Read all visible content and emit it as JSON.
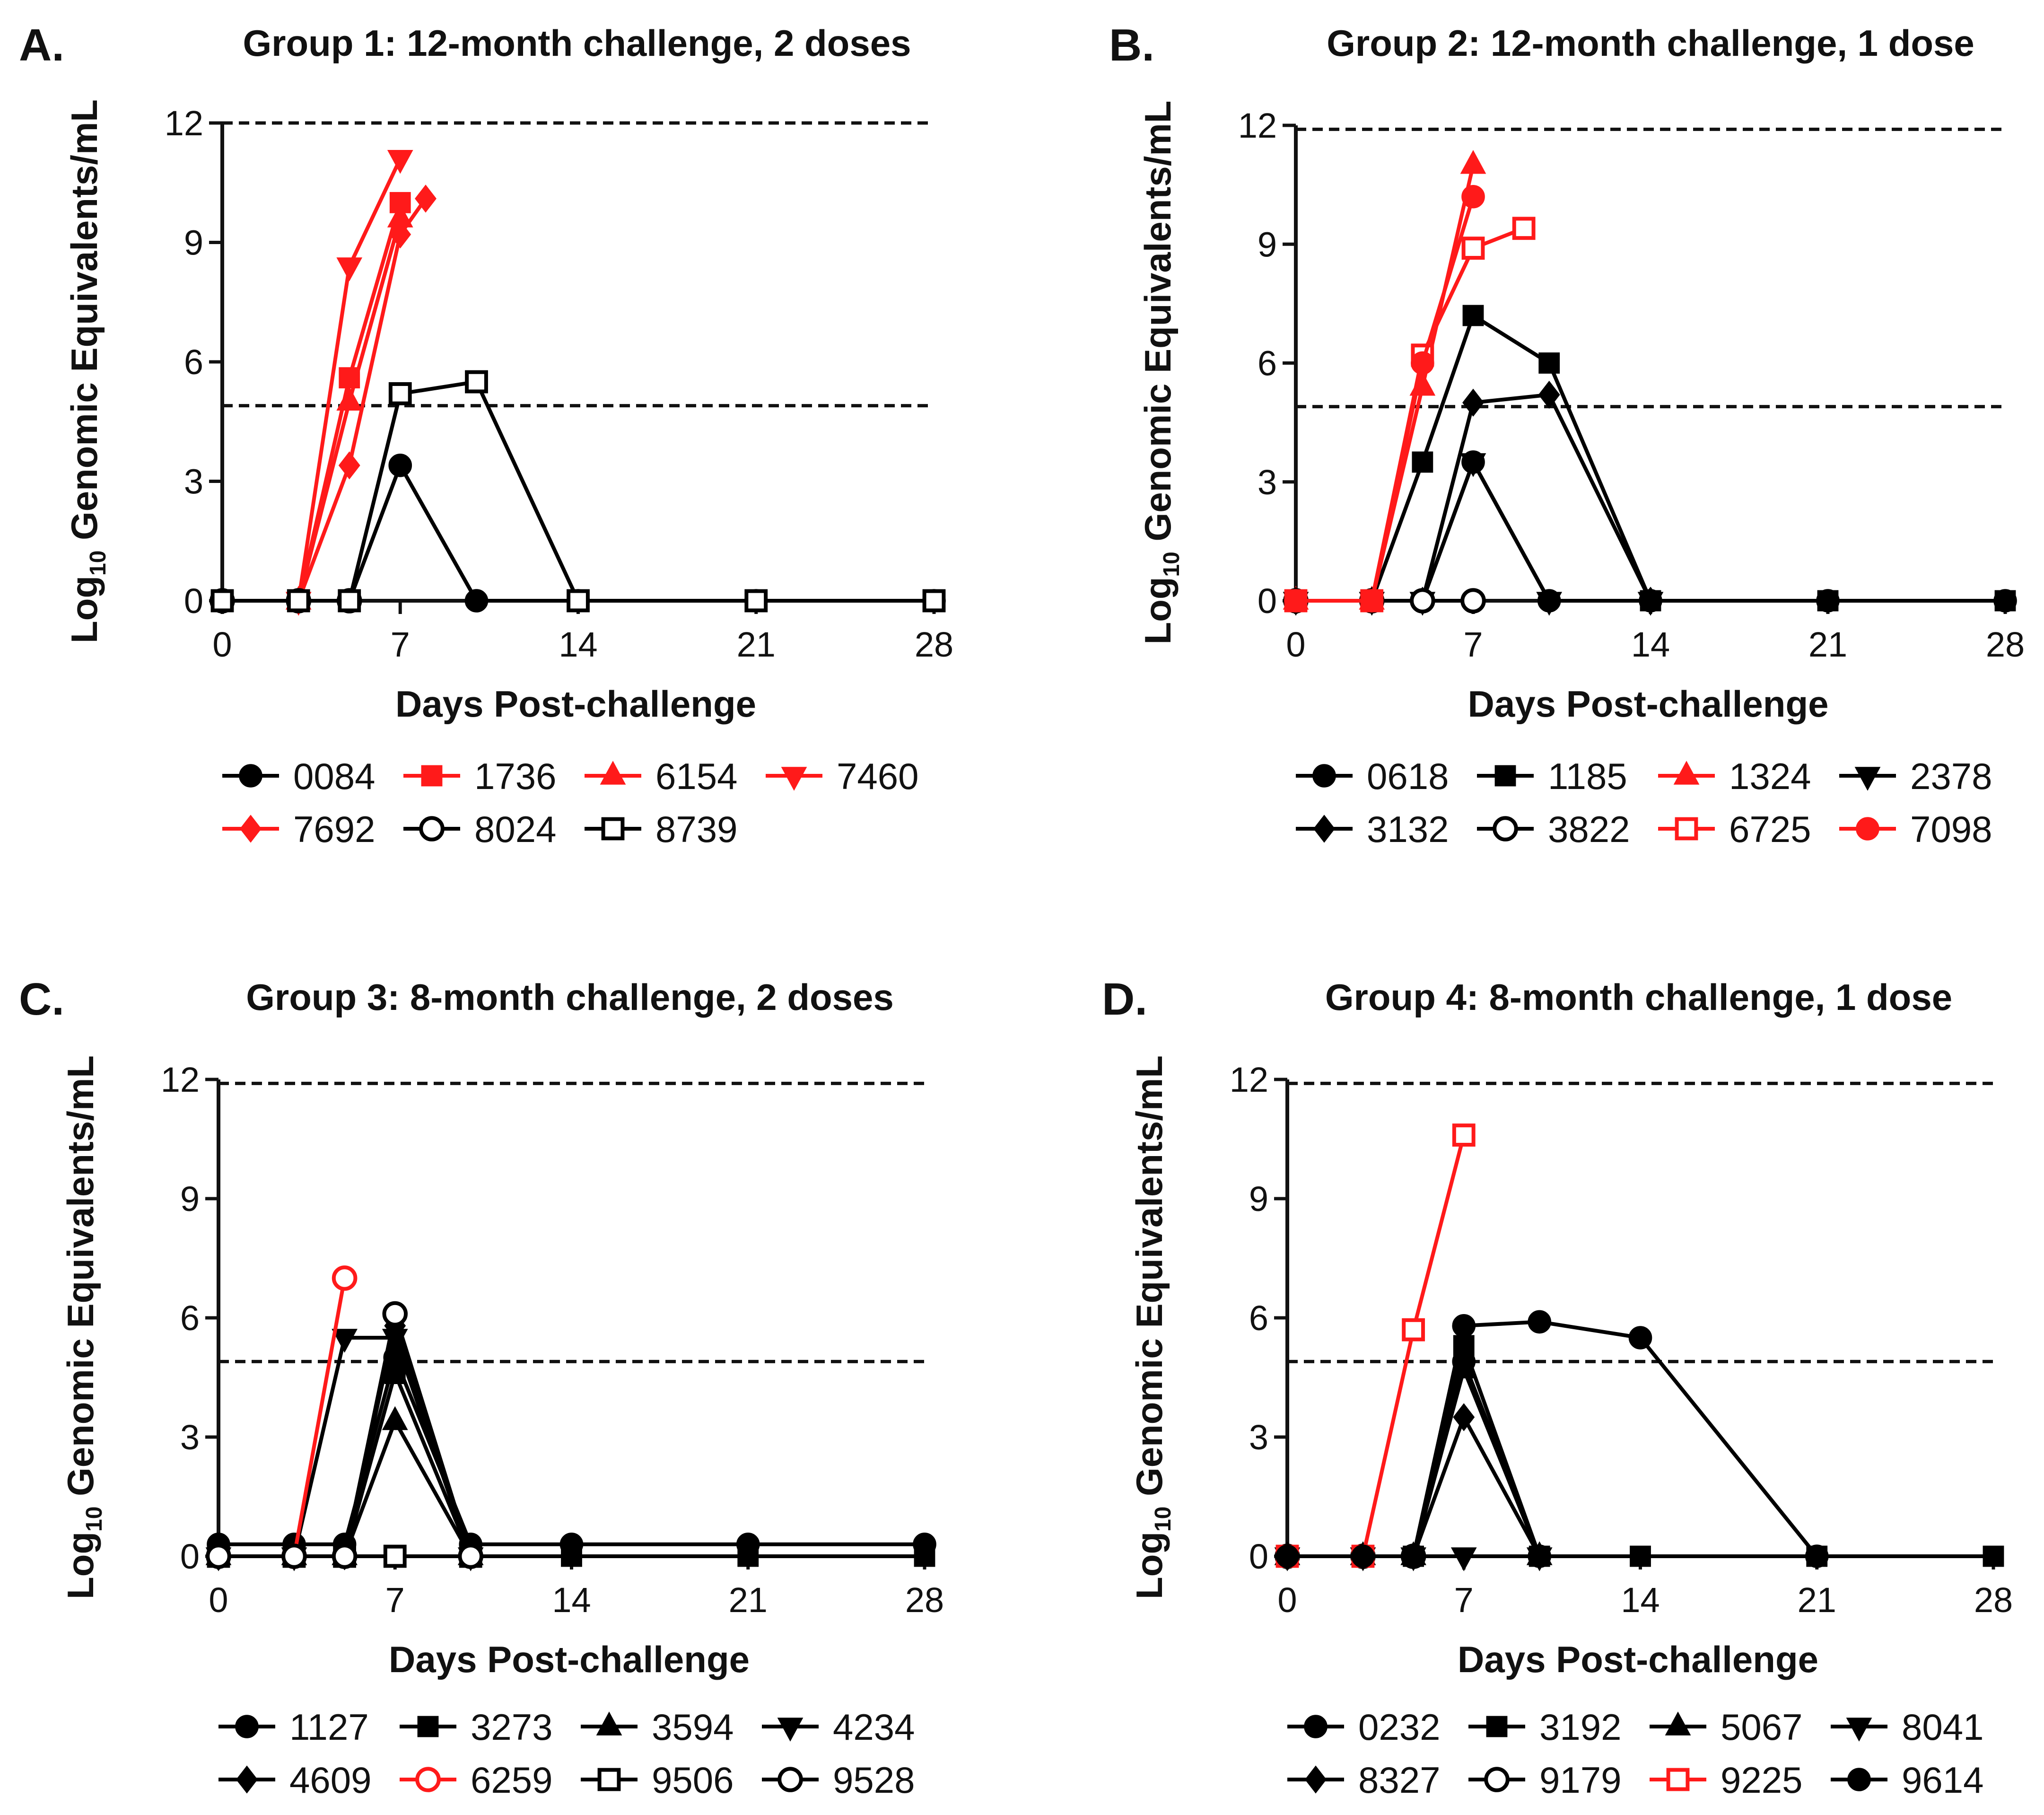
{
  "chart_data": [
    {
      "type": "line",
      "panel_label": "A.",
      "title": "Group 1: 12-month challenge, 2 doses",
      "xlabel": "Days Post-challenge",
      "ylabel_main": "Log",
      "ylabel_sub": "10",
      "ylabel_rest": " Genomic Equivalents/mL",
      "xlim": [
        0,
        28
      ],
      "ylim": [
        0,
        12
      ],
      "xticks": [
        "0",
        "7",
        "14",
        "21",
        "28"
      ],
      "yticks": [
        "0",
        "3",
        "6",
        "9",
        "12"
      ],
      "reference_lines": [
        12,
        4.9
      ],
      "series": [
        {
          "name": "0084",
          "color": "#000000",
          "marker": "circle",
          "filled": true,
          "x": [
            0,
            3,
            5,
            7,
            10,
            14,
            21,
            28
          ],
          "y": [
            0,
            0,
            0,
            3.4,
            0,
            0,
            0,
            0
          ]
        },
        {
          "name": "1736",
          "color": "#ff1a1a",
          "marker": "square",
          "filled": true,
          "x": [
            3,
            5,
            7
          ],
          "y": [
            0,
            5.6,
            10.0
          ]
        },
        {
          "name": "6154",
          "color": "#ff1a1a",
          "marker": "triangle-up",
          "filled": true,
          "x": [
            3,
            5,
            7
          ],
          "y": [
            0,
            5.0,
            9.6
          ]
        },
        {
          "name": "7460",
          "color": "#ff1a1a",
          "marker": "triangle-down",
          "filled": true,
          "x": [
            3,
            5,
            7
          ],
          "y": [
            0,
            8.4,
            11.1
          ]
        },
        {
          "name": "7692",
          "color": "#ff1a1a",
          "marker": "diamond",
          "filled": true,
          "x": [
            3,
            5,
            7,
            8
          ],
          "y": [
            0,
            3.4,
            9.2,
            10.1
          ]
        },
        {
          "name": "8024",
          "color": "#000000",
          "marker": "circle",
          "filled": false,
          "x": [
            0,
            3,
            5
          ],
          "y": [
            0,
            0,
            0
          ]
        },
        {
          "name": "8739",
          "color": "#000000",
          "marker": "square",
          "filled": false,
          "x": [
            0,
            3,
            5,
            7,
            10,
            14,
            21,
            28
          ],
          "y": [
            0,
            0,
            0,
            5.2,
            5.5,
            0,
            0,
            0
          ]
        }
      ]
    },
    {
      "type": "line",
      "panel_label": "B.",
      "title": "Group 2: 12-month challenge, 1 dose",
      "xlabel": "Days Post-challenge",
      "ylabel_main": "Log",
      "ylabel_sub": "10",
      "ylabel_rest": " Genomic Equivalents/mL",
      "xlim": [
        0,
        28
      ],
      "ylim": [
        0,
        12
      ],
      "xticks": [
        "0",
        "7",
        "14",
        "21",
        "28"
      ],
      "yticks": [
        "0",
        "3",
        "6",
        "9",
        "12"
      ],
      "reference_lines": [
        11.9,
        4.9
      ],
      "series": [
        {
          "name": "0618",
          "color": "#000000",
          "marker": "circle",
          "filled": true,
          "x": [
            0,
            3,
            5,
            7,
            10,
            14,
            21,
            28
          ],
          "y": [
            0,
            0,
            0,
            3.5,
            0,
            0,
            0,
            0
          ]
        },
        {
          "name": "1185",
          "color": "#000000",
          "marker": "square",
          "filled": true,
          "x": [
            0,
            3,
            5,
            7,
            10,
            14,
            21,
            28
          ],
          "y": [
            0,
            0,
            3.5,
            7.2,
            6.0,
            0,
            0,
            0
          ]
        },
        {
          "name": "1324",
          "color": "#ff1a1a",
          "marker": "triangle-up",
          "filled": true,
          "x": [
            0,
            3,
            5,
            7
          ],
          "y": [
            0,
            0,
            5.4,
            11.0
          ]
        },
        {
          "name": "2378",
          "color": "#000000",
          "marker": "triangle-down",
          "filled": true,
          "x": [
            0,
            3,
            5,
            7,
            10,
            14
          ],
          "y": [
            0,
            0,
            0,
            3.5,
            0,
            0
          ]
        },
        {
          "name": "3132",
          "color": "#000000",
          "marker": "diamond",
          "filled": true,
          "x": [
            0,
            3,
            5,
            7,
            10,
            14
          ],
          "y": [
            0,
            0,
            0,
            5.0,
            5.2,
            0
          ]
        },
        {
          "name": "3822",
          "color": "#000000",
          "marker": "circle",
          "filled": false,
          "x": [
            0,
            3,
            5,
            7
          ],
          "y": [
            0,
            0,
            0,
            0
          ]
        },
        {
          "name": "6725",
          "color": "#ff1a1a",
          "marker": "square",
          "filled": false,
          "x": [
            0,
            3,
            5,
            7,
            9
          ],
          "y": [
            0,
            0,
            6.2,
            8.9,
            9.4
          ]
        },
        {
          "name": "7098",
          "color": "#ff1a1a",
          "marker": "circle",
          "filled": true,
          "x": [
            0,
            3,
            5,
            7
          ],
          "y": [
            0,
            0,
            6.0,
            10.2
          ]
        }
      ]
    },
    {
      "type": "line",
      "panel_label": "C.",
      "title": "Group 3: 8-month challenge, 2 doses",
      "xlabel": "Days Post-challenge",
      "ylabel_main": "Log",
      "ylabel_sub": "10",
      "ylabel_rest": " Genomic Equivalents/mL",
      "xlim": [
        0,
        28
      ],
      "ylim": [
        0,
        12
      ],
      "xticks": [
        "0",
        "7",
        "14",
        "21",
        "28"
      ],
      "yticks": [
        "0",
        "3",
        "6",
        "9",
        "12"
      ],
      "reference_lines": [
        11.9,
        4.9
      ],
      "series": [
        {
          "name": "1127",
          "color": "#000000",
          "marker": "circle",
          "filled": true,
          "x": [
            0,
            3,
            5,
            7,
            10,
            14,
            21,
            28
          ],
          "y": [
            0.3,
            0.3,
            0.3,
            5.0,
            0.3,
            0.3,
            0.3,
            0.3
          ]
        },
        {
          "name": "3273",
          "color": "#000000",
          "marker": "square",
          "filled": true,
          "x": [
            0,
            3,
            5,
            7,
            10,
            14,
            21,
            28
          ],
          "y": [
            0,
            0,
            0,
            4.6,
            0,
            0,
            0,
            0
          ]
        },
        {
          "name": "3594",
          "color": "#000000",
          "marker": "triangle-up",
          "filled": true,
          "x": [
            0,
            3,
            5,
            7,
            10
          ],
          "y": [
            0,
            0,
            0,
            3.4,
            0
          ]
        },
        {
          "name": "4234",
          "color": "#000000",
          "marker": "triangle-down",
          "filled": true,
          "x": [
            0,
            3,
            5,
            7,
            10
          ],
          "y": [
            0,
            0,
            5.5,
            5.5,
            0
          ]
        },
        {
          "name": "4609",
          "color": "#000000",
          "marker": "diamond",
          "filled": true,
          "x": [
            0,
            3,
            5,
            7,
            10
          ],
          "y": [
            0,
            0,
            0,
            5.8,
            0
          ]
        },
        {
          "name": "6259",
          "color": "#ff1a1a",
          "marker": "circle",
          "filled": false,
          "x": [
            3,
            5
          ],
          "y": [
            0,
            7.0
          ]
        },
        {
          "name": "9506",
          "color": "#000000",
          "marker": "square",
          "filled": false,
          "x": [
            0,
            3,
            5,
            7,
            10
          ],
          "y": [
            0,
            0,
            0,
            0,
            0
          ]
        },
        {
          "name": "9528",
          "color": "#000000",
          "marker": "circle",
          "filled": false,
          "x": [
            0,
            3,
            5,
            7,
            10
          ],
          "y": [
            0,
            0,
            0,
            6.1,
            0
          ]
        }
      ]
    },
    {
      "type": "line",
      "panel_label": "D.",
      "title": "Group 4: 8-month challenge, 1 dose",
      "xlabel": "Days Post-challenge",
      "ylabel_main": "Log",
      "ylabel_sub": "10",
      "ylabel_rest": " Genomic Equivalents/mL",
      "xlim": [
        0,
        28
      ],
      "ylim": [
        0,
        12
      ],
      "xticks": [
        "0",
        "7",
        "14",
        "21",
        "28"
      ],
      "yticks": [
        "0",
        "3",
        "6",
        "9",
        "12"
      ],
      "reference_lines": [
        11.9,
        4.9
      ],
      "series": [
        {
          "name": "0232",
          "color": "#000000",
          "marker": "circle",
          "filled": true,
          "x": [
            0,
            3,
            5,
            7,
            10
          ],
          "y": [
            0,
            0,
            0,
            4.9,
            0
          ]
        },
        {
          "name": "3192",
          "color": "#000000",
          "marker": "square",
          "filled": true,
          "x": [
            0,
            3,
            5,
            7,
            10,
            14,
            21,
            28
          ],
          "y": [
            0,
            0,
            0,
            5.3,
            0,
            0,
            0,
            0
          ]
        },
        {
          "name": "5067",
          "color": "#000000",
          "marker": "triangle-up",
          "filled": true,
          "x": [
            0,
            3,
            5,
            7,
            10
          ],
          "y": [
            0,
            0,
            0,
            4.7,
            0
          ]
        },
        {
          "name": "8041",
          "color": "#000000",
          "marker": "triangle-down",
          "filled": true,
          "x": [
            0,
            3,
            5,
            7,
            10
          ],
          "y": [
            0,
            0,
            0,
            0,
            0
          ]
        },
        {
          "name": "8327",
          "color": "#000000",
          "marker": "diamond",
          "filled": true,
          "x": [
            0,
            3,
            5,
            7,
            10
          ],
          "y": [
            0,
            0,
            0,
            3.5,
            0
          ]
        },
        {
          "name": "9179",
          "color": "#000000",
          "marker": "circle",
          "filled": false,
          "x": [
            0,
            3,
            5
          ],
          "y": [
            0,
            0,
            0
          ]
        },
        {
          "name": "9225",
          "color": "#ff1a1a",
          "marker": "square",
          "filled": false,
          "x": [
            0,
            3,
            5,
            7
          ],
          "y": [
            0,
            0,
            5.7,
            10.6
          ]
        },
        {
          "name": "9614",
          "color": "#000000",
          "marker": "circle",
          "filled": true,
          "x": [
            0,
            3,
            5,
            7,
            10,
            14,
            21
          ],
          "y": [
            0,
            0,
            0,
            5.8,
            5.9,
            5.5,
            0
          ]
        }
      ]
    }
  ]
}
